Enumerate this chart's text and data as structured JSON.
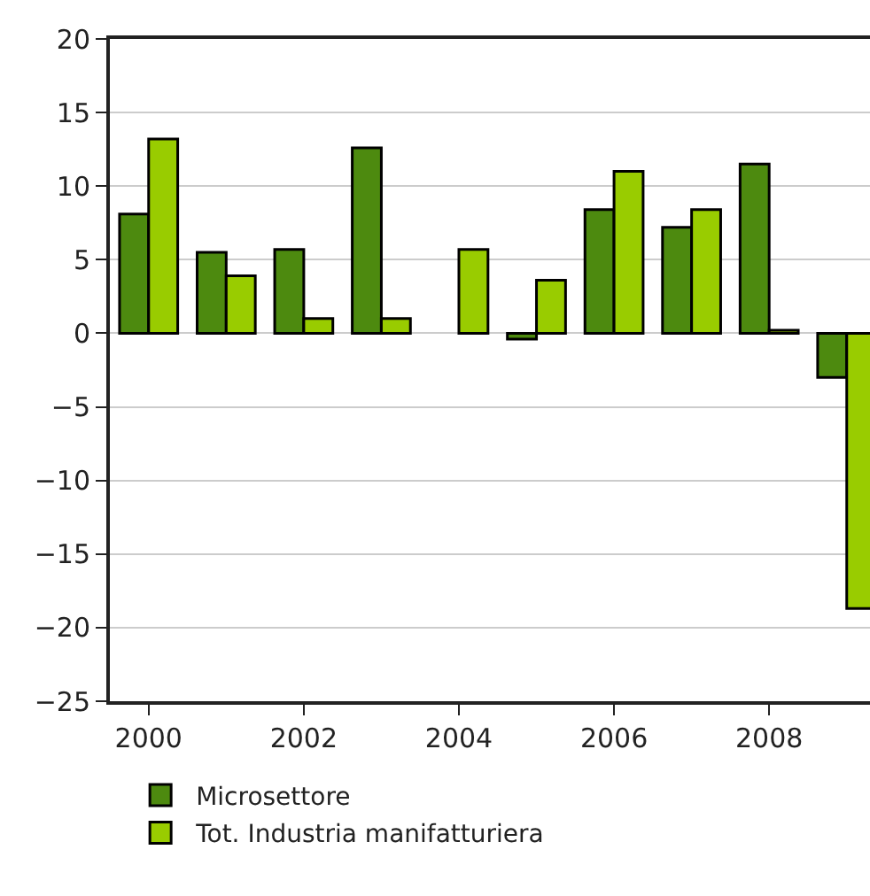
{
  "chart_data": {
    "type": "bar",
    "x": [
      2000,
      2001,
      2002,
      2003,
      2004,
      2005,
      2006,
      2007,
      2008,
      2009
    ],
    "series": [
      {
        "name": "Microsettore",
        "color": "#4d8a0f",
        "values": [
          8.1,
          5.5,
          5.7,
          12.6,
          null,
          -0.4,
          8.4,
          7.2,
          11.5,
          -3.0
        ]
      },
      {
        "name": "Tot. Industria manifatturiera",
        "color": "#99cc00",
        "values": [
          13.2,
          3.9,
          1.0,
          1.0,
          5.7,
          3.6,
          11.0,
          8.4,
          0.2,
          -18.7
        ]
      }
    ],
    "xlim": [
      1999.5,
      2009.3
    ],
    "xticks": [
      2000,
      2002,
      2004,
      2006,
      2008
    ],
    "ylim": [
      -25,
      20
    ],
    "yticks": [
      -25,
      -20,
      -15,
      -10,
      -5,
      0,
      5,
      10,
      15,
      20
    ],
    "grid": "y",
    "legend": "bottom"
  }
}
